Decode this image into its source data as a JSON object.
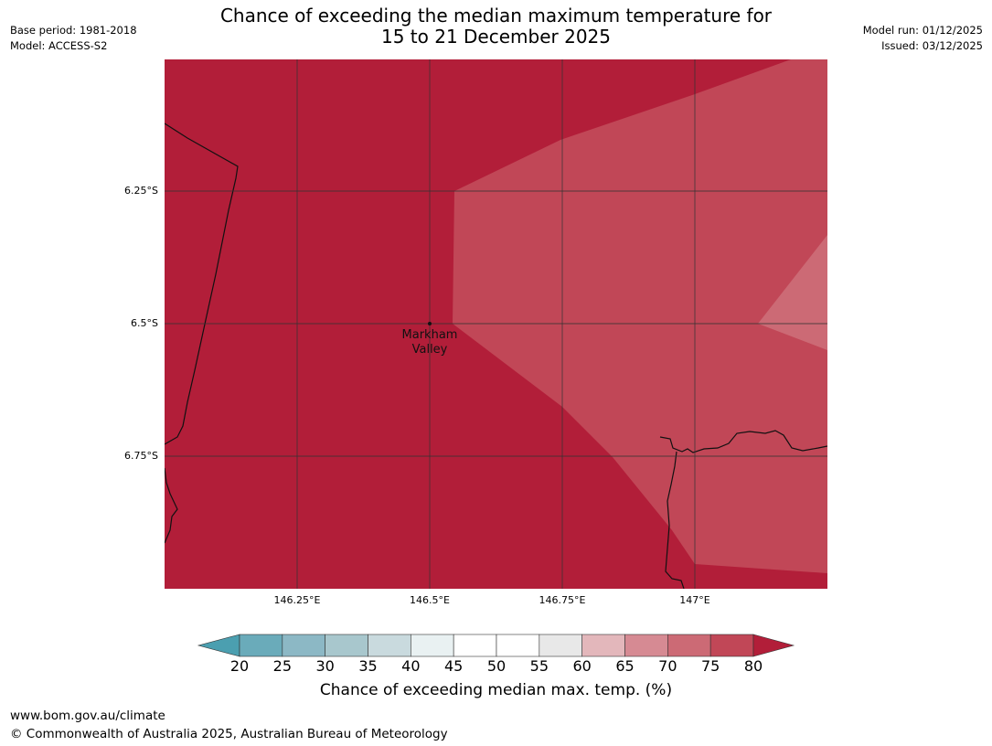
{
  "meta": {
    "base_period": "Base period: 1981-2018",
    "model": "Model: ACCESS-S2",
    "model_run": "Model run: 01/12/2025",
    "issued": "Issued: 03/12/2025"
  },
  "title": {
    "line1": "Chance of exceeding the median maximum temperature for",
    "line2": "15 to 21 December 2025"
  },
  "map": {
    "lat_labels": [
      "6.25°S",
      "6.5°S",
      "6.75°S"
    ],
    "lon_labels": [
      "146.25°E",
      "146.5°E",
      "146.75°E",
      "147°E"
    ],
    "town": {
      "name_line1": "Markham",
      "name_line2": "Valley"
    },
    "colors": {
      "c80": "#b21e39",
      "c75": "#c14757",
      "c70": "#cc6a75"
    }
  },
  "colorbar": {
    "ticks": [
      "20",
      "25",
      "30",
      "35",
      "40",
      "45",
      "50",
      "55",
      "60",
      "65",
      "70",
      "75",
      "80"
    ],
    "colors": [
      "#6aabba",
      "#8cb8c5",
      "#a8c7cd",
      "#c9dade",
      "#e9f1f2",
      "#ffffff",
      "#ffffff",
      "#e8e8e8",
      "#e3b7bb",
      "#d68a93",
      "#cc6a75",
      "#c14757"
    ],
    "low_color": "#4b9fb0",
    "high_color": "#b21e39",
    "label": "Chance of exceeding median max. temp. (%)"
  },
  "footer": {
    "url": "www.bom.gov.au/climate",
    "copyright": "© Commonwealth of Australia 2025, Australian Bureau of Meteorology"
  }
}
